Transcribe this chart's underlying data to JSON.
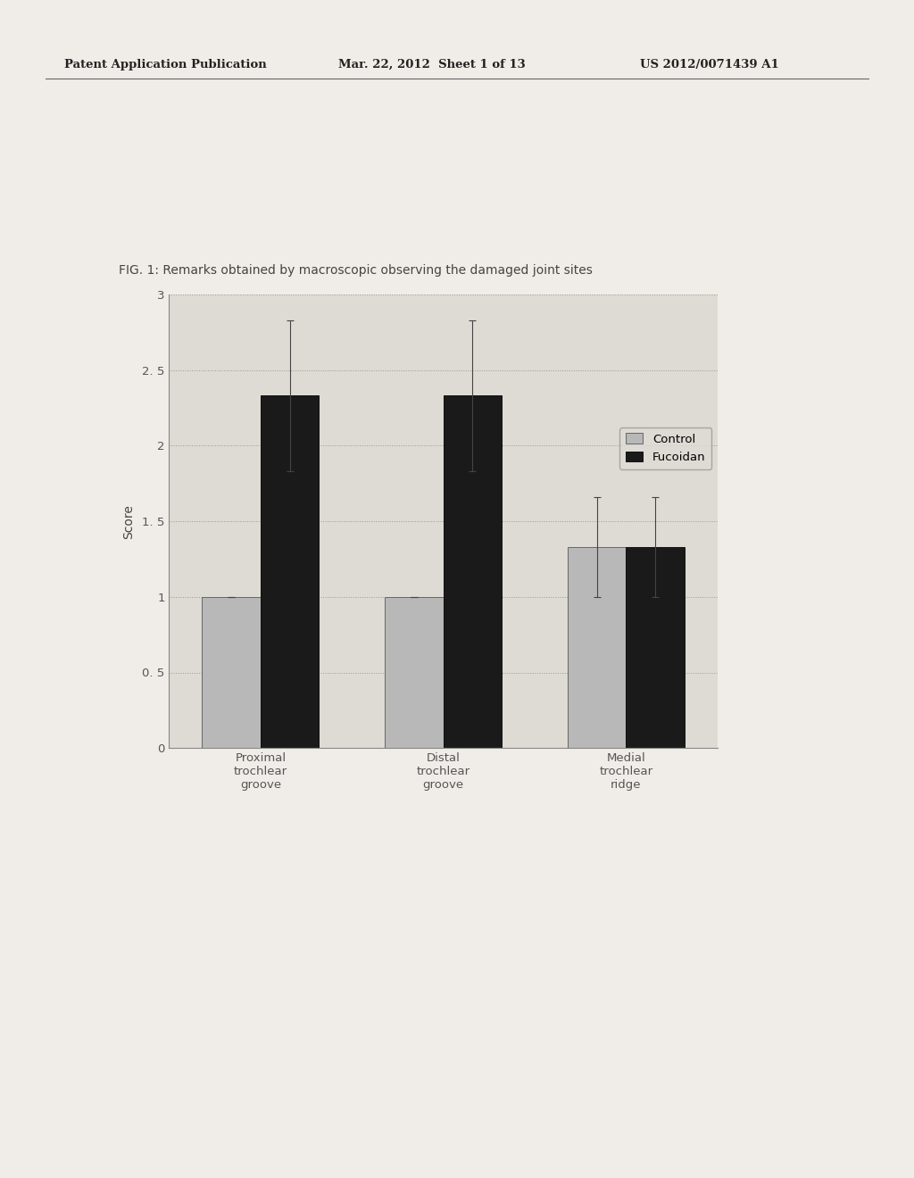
{
  "title": "FIG. 1: Remarks obtained by macroscopic observing the damaged joint sites",
  "categories": [
    "Proximal\ntrochlear\ngroove",
    "Distal\ntrochlear\ngroove",
    "Medial\ntrochlear\nridge"
  ],
  "control_values": [
    1.0,
    1.0,
    1.33
  ],
  "fucoidan_values": [
    2.33,
    2.33,
    1.33
  ],
  "control_errors": [
    0.0,
    0.0,
    0.33
  ],
  "fucoidan_errors": [
    0.5,
    0.5,
    0.33
  ],
  "ylabel": "Score",
  "ylim": [
    0,
    3.0
  ],
  "yticks": [
    0,
    0.5,
    1.0,
    1.5,
    2.0,
    2.5,
    3.0
  ],
  "ytick_labels": [
    "0",
    "0. 5",
    "1",
    "1. 5",
    "2",
    "2. 5",
    "3"
  ],
  "control_color": "#b8b8b8",
  "fucoidan_color": "#1a1a1a",
  "bar_width": 0.32,
  "legend_control": "Control",
  "legend_fucoidan": "Fucoidan",
  "header_left": "Patent Application Publication",
  "header_mid": "Mar. 22, 2012  Sheet 1 of 13",
  "header_right": "US 2012/0071439 A1",
  "bg_color": "#f0ede8",
  "chart_bg": "#dedad4"
}
